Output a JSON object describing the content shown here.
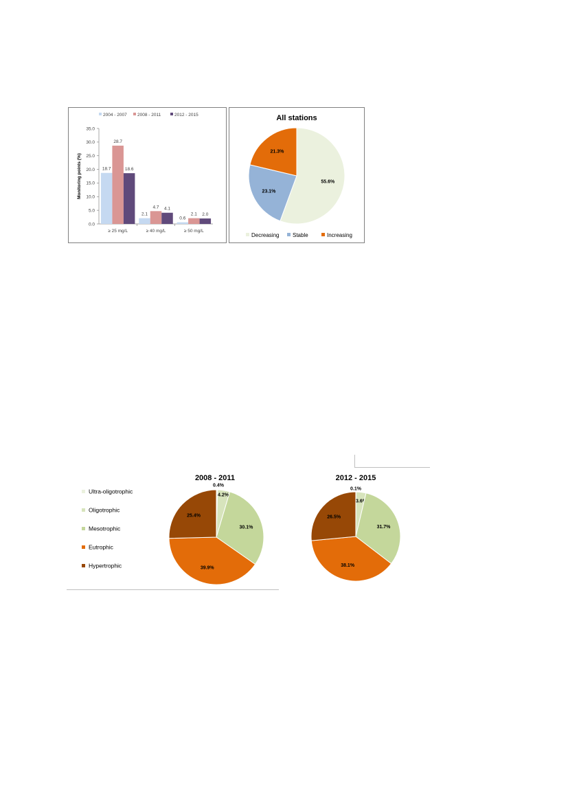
{
  "colors": {
    "s2004": "#c5d9f1",
    "s2008": "#da9694",
    "s2012": "#604a7b",
    "decreasing": "#ebf1de",
    "stable": "#95b3d7",
    "increasing": "#e36c09",
    "ultra": "#ebf1de",
    "oligo": "#d7e4bc",
    "meso": "#c4d79b",
    "eutro": "#e36c09",
    "hyper": "#974806"
  },
  "chart_data": [
    {
      "type": "bar",
      "title": "",
      "xlabel": "",
      "ylabel": "Monitoring points (%)",
      "categories": [
        "≥ 25 mg/L",
        "≥ 40 mg/L",
        "≥ 50 mg/L"
      ],
      "series": [
        {
          "name": "2004 - 2007",
          "values": [
            18.7,
            2.1,
            0.6
          ],
          "label_text": [
            "18.7",
            "2.1",
            "0.6"
          ],
          "color": "#c5d9f1"
        },
        {
          "name": "2008 - 2011",
          "values": [
            28.7,
            4.7,
            2.1
          ],
          "label_text": [
            "28.7",
            "4.7",
            "2.1"
          ],
          "color": "#da9694"
        },
        {
          "name": "2012 - 2015",
          "values": [
            18.6,
            4.1,
            2.0
          ],
          "label_text": [
            "18.6",
            "4.1",
            "2.0"
          ],
          "color": "#604a7b"
        }
      ],
      "ylim": [
        0,
        35
      ],
      "yticks": [
        0,
        5,
        10,
        15,
        20,
        25,
        30,
        35
      ],
      "ytick_labels": [
        "0.0",
        "5.0",
        "10.0",
        "15.0",
        "20.0",
        "25.0",
        "30.0",
        "35.0"
      ],
      "legend": "top",
      "grid": false
    },
    {
      "type": "pie",
      "title": "All stations",
      "slices": [
        {
          "name": "Decreasing",
          "value": 55.6,
          "label": "55.6%",
          "color": "#ebf1de"
        },
        {
          "name": "Stable",
          "value": 23.1,
          "label": "23.1%",
          "color": "#95b3d7"
        },
        {
          "name": "Increasing",
          "value": 21.3,
          "label": "21.3%",
          "color": "#e36c09"
        }
      ],
      "legend": "bottom"
    },
    {
      "type": "pie",
      "title": "2008 - 2011",
      "slices": [
        {
          "name": "Ultra-oligotrophic",
          "value": 0.4,
          "label": "0.4%",
          "color": "#ebf1de"
        },
        {
          "name": "Oligotrophic",
          "value": 4.2,
          "label": "4.2%",
          "color": "#d7e4bc"
        },
        {
          "name": "Mesotrophic",
          "value": 30.1,
          "label": "30.1%",
          "color": "#c4d79b"
        },
        {
          "name": "Eutrophic",
          "value": 39.9,
          "label": "39.9%",
          "color": "#e36c09"
        },
        {
          "name": "Hypertrophic",
          "value": 25.4,
          "label": "25.4%",
          "color": "#974806"
        }
      ],
      "legend": "left"
    },
    {
      "type": "pie",
      "title": "2012 - 2015",
      "slices": [
        {
          "name": "Ultra-oligotrophic",
          "value": 0.1,
          "label": "0.1%",
          "color": "#ebf1de"
        },
        {
          "name": "Oligotrophic",
          "value": 3.6,
          "label": "3.6%",
          "color": "#d7e4bc"
        },
        {
          "name": "Mesotrophic",
          "value": 31.7,
          "label": "31.7%",
          "color": "#c4d79b"
        },
        {
          "name": "Eutrophic",
          "value": 38.1,
          "label": "38.1%",
          "color": "#e36c09"
        },
        {
          "name": "Hypertrophic",
          "value": 26.5,
          "label": "26.5%",
          "color": "#974806"
        }
      ],
      "legend": "none"
    }
  ],
  "trophic_legend": [
    "Ultra-oligotrophic",
    "Oligotrophic",
    "Mesotrophic",
    "Eutrophic",
    "Hypertrophic"
  ],
  "trend_legend": [
    "Decreasing",
    "Stable",
    "Increasing"
  ]
}
